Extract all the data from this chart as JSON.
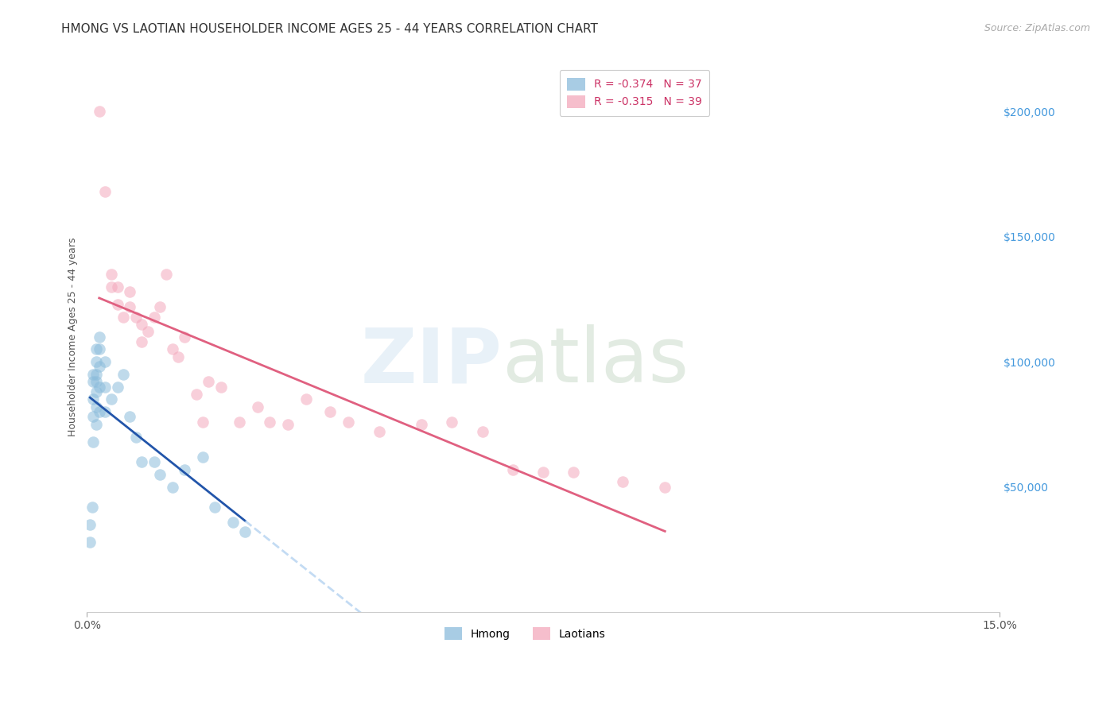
{
  "title": "HMONG VS LAOTIAN HOUSEHOLDER INCOME AGES 25 - 44 YEARS CORRELATION CHART",
  "source": "Source: ZipAtlas.com",
  "ylabel": "Householder Income Ages 25 - 44 years",
  "xlim": [
    0.0,
    0.15
  ],
  "ylim": [
    0,
    220000
  ],
  "xtick_labels": [
    "0.0%",
    "15.0%"
  ],
  "xtick_positions": [
    0.0,
    0.15
  ],
  "ytick_labels": [
    "$50,000",
    "$100,000",
    "$150,000",
    "$200,000"
  ],
  "ytick_positions": [
    50000,
    100000,
    150000,
    200000
  ],
  "legend_top_labels": [
    "R = -0.374   N = 37",
    "R = -0.315   N = 39"
  ],
  "legend_bottom_labels": [
    "Hmong",
    "Laotians"
  ],
  "hmong_color": "#8bbcdb",
  "laotian_color": "#f4a8bc",
  "hmong_line_color": "#2255aa",
  "laotian_line_color": "#e06080",
  "hmong_dashed_color": "#aaccee",
  "background_color": "#ffffff",
  "grid_color": "#ddeeff",
  "title_color": "#333333",
  "source_color": "#aaaaaa",
  "rvalue_color": "#cc3366",
  "ytick_color": "#4499dd",
  "title_fontsize": 11,
  "source_fontsize": 9,
  "axis_label_fontsize": 9,
  "tick_fontsize": 10,
  "legend_fontsize": 10,
  "marker_size": 110,
  "marker_alpha": 0.55,
  "line_width": 2.0,
  "hmong_x": [
    0.0005,
    0.0005,
    0.0008,
    0.001,
    0.001,
    0.001,
    0.001,
    0.001,
    0.0015,
    0.0015,
    0.0015,
    0.0015,
    0.0015,
    0.0015,
    0.0015,
    0.002,
    0.002,
    0.002,
    0.002,
    0.002,
    0.003,
    0.003,
    0.003,
    0.004,
    0.005,
    0.006,
    0.007,
    0.008,
    0.009,
    0.011,
    0.012,
    0.014,
    0.016,
    0.019,
    0.021,
    0.024,
    0.026
  ],
  "hmong_y": [
    35000,
    28000,
    42000,
    95000,
    92000,
    85000,
    78000,
    68000,
    105000,
    100000,
    95000,
    92000,
    88000,
    82000,
    75000,
    110000,
    105000,
    98000,
    90000,
    80000,
    100000,
    90000,
    80000,
    85000,
    90000,
    95000,
    78000,
    70000,
    60000,
    60000,
    55000,
    50000,
    57000,
    62000,
    42000,
    36000,
    32000
  ],
  "laotian_x": [
    0.002,
    0.003,
    0.004,
    0.004,
    0.005,
    0.005,
    0.006,
    0.007,
    0.007,
    0.008,
    0.009,
    0.009,
    0.01,
    0.011,
    0.012,
    0.013,
    0.014,
    0.015,
    0.016,
    0.018,
    0.019,
    0.02,
    0.022,
    0.025,
    0.028,
    0.03,
    0.033,
    0.036,
    0.04,
    0.043,
    0.048,
    0.055,
    0.06,
    0.065,
    0.07,
    0.075,
    0.08,
    0.088,
    0.095
  ],
  "laotian_y": [
    200000,
    168000,
    135000,
    130000,
    130000,
    123000,
    118000,
    128000,
    122000,
    118000,
    115000,
    108000,
    112000,
    118000,
    122000,
    135000,
    105000,
    102000,
    110000,
    87000,
    76000,
    92000,
    90000,
    76000,
    82000,
    76000,
    75000,
    85000,
    80000,
    76000,
    72000,
    75000,
    76000,
    72000,
    57000,
    56000,
    56000,
    52000,
    50000
  ]
}
